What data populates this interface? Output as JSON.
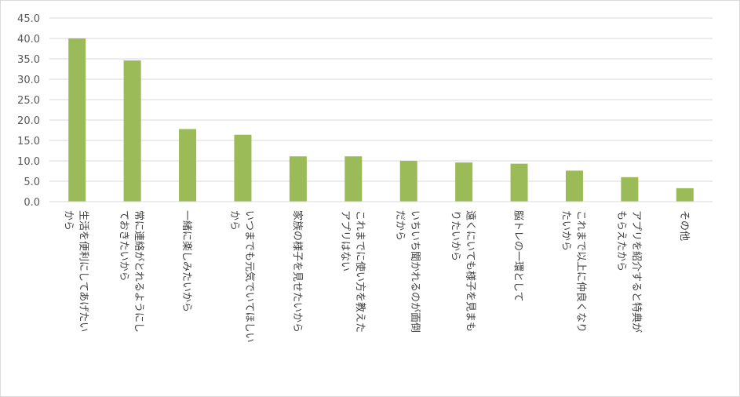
{
  "chart_data": {
    "type": "bar",
    "categories": [
      [
        "生活を便利にしてあげたい",
        "から"
      ],
      [
        "常に連絡がとれるようにし",
        "ておきたいから"
      ],
      [
        "一緒に楽しみたいから"
      ],
      [
        "いつまでも元気でいてほしい",
        "から"
      ],
      [
        "家族の様子を見せたいから"
      ],
      [
        "これまでに使い方を教えた",
        "アプリはない"
      ],
      [
        "いちいち聞かれるのが面倒",
        "だから"
      ],
      [
        "遠くにいても様子を見まも",
        "りたいから"
      ],
      [
        "脳トレの一環として"
      ],
      [
        "これまで以上に仲良くなり",
        "たいから"
      ],
      [
        "アプリを紹介すると特典が",
        "もらえたから"
      ],
      [
        "その他"
      ]
    ],
    "values": [
      40.0,
      34.6,
      17.8,
      16.4,
      11.1,
      11.1,
      10.0,
      9.6,
      9.3,
      7.6,
      6.0,
      3.3
    ],
    "ylim": [
      0,
      45
    ],
    "yticks": [
      "0.0",
      "5.0",
      "10.0",
      "15.0",
      "20.0",
      "25.0",
      "30.0",
      "35.0",
      "40.0",
      "45.0"
    ],
    "grid": true,
    "legend": "none",
    "bar_color": "#9bbb59",
    "title": "",
    "xlabel": "",
    "ylabel": ""
  }
}
